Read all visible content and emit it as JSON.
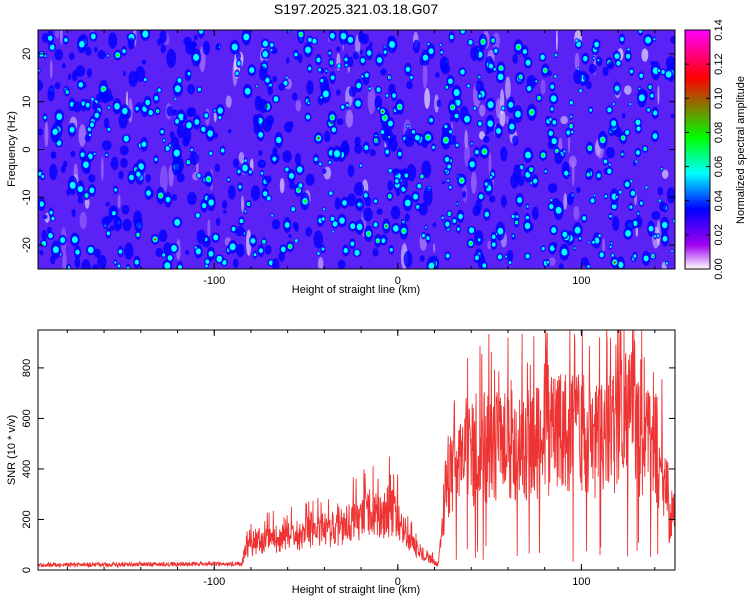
{
  "chart_data": [
    {
      "type": "heatmap",
      "title": "S197.2025.321.03.18.G07",
      "xlabel": "Height of straight line (km)",
      "ylabel": "Frequency (Hz)",
      "xlim": [
        -196,
        151
      ],
      "ylim": [
        -25,
        25
      ],
      "xticks": [
        -100,
        0,
        100
      ],
      "yticks": [
        -20,
        -10,
        0,
        10,
        20
      ],
      "xtick_labels": [
        "-100",
        "0",
        "100"
      ],
      "ytick_labels": [
        "-20",
        "-10",
        "0",
        "10",
        "20"
      ],
      "colorbar": {
        "label": "Normalized spectral amplitude",
        "range": [
          0.0,
          0.14
        ],
        "ticks": [
          "0.00",
          "0.02",
          "0.04",
          "0.06",
          "0.08",
          "0.10",
          "0.12",
          "0.14"
        ],
        "colors": [
          "#ffffff",
          "#a000f0",
          "#0000ff",
          "#00ffff",
          "#00ff00",
          "#ff0000",
          "#ff00ff"
        ]
      },
      "texture": {
        "base_level": 0.03,
        "peak_level": 0.14,
        "seed": 197
      }
    },
    {
      "type": "line",
      "xlabel": "Height of straight line (km)",
      "ylabel": "SNR (10 * v/v)",
      "xlim": [
        -196,
        151
      ],
      "ylim": [
        0,
        950
      ],
      "xticks": [
        -100,
        0,
        100
      ],
      "yticks": [
        0,
        200,
        400,
        600,
        800
      ],
      "xtick_labels": [
        "-100",
        "0",
        "100"
      ],
      "ytick_labels": [
        "0",
        "200",
        "400",
        "600",
        "800"
      ],
      "series": [
        {
          "name": "SNR",
          "color": "#ee3333",
          "x": [
            -196,
            -85,
            -83,
            -75,
            -60,
            -45,
            -30,
            -20,
            -10,
            -2,
            5,
            15,
            22,
            24,
            26,
            35,
            50,
            60,
            70,
            80,
            90,
            100,
            110,
            120,
            127,
            130,
            140,
            145,
            148,
            151
          ],
          "y": [
            20,
            25,
            80,
            110,
            130,
            150,
            170,
            200,
            220,
            240,
            110,
            60,
            20,
            150,
            320,
            440,
            480,
            500,
            460,
            520,
            540,
            560,
            500,
            560,
            620,
            520,
            480,
            360,
            180,
            300
          ]
        }
      ]
    }
  ]
}
